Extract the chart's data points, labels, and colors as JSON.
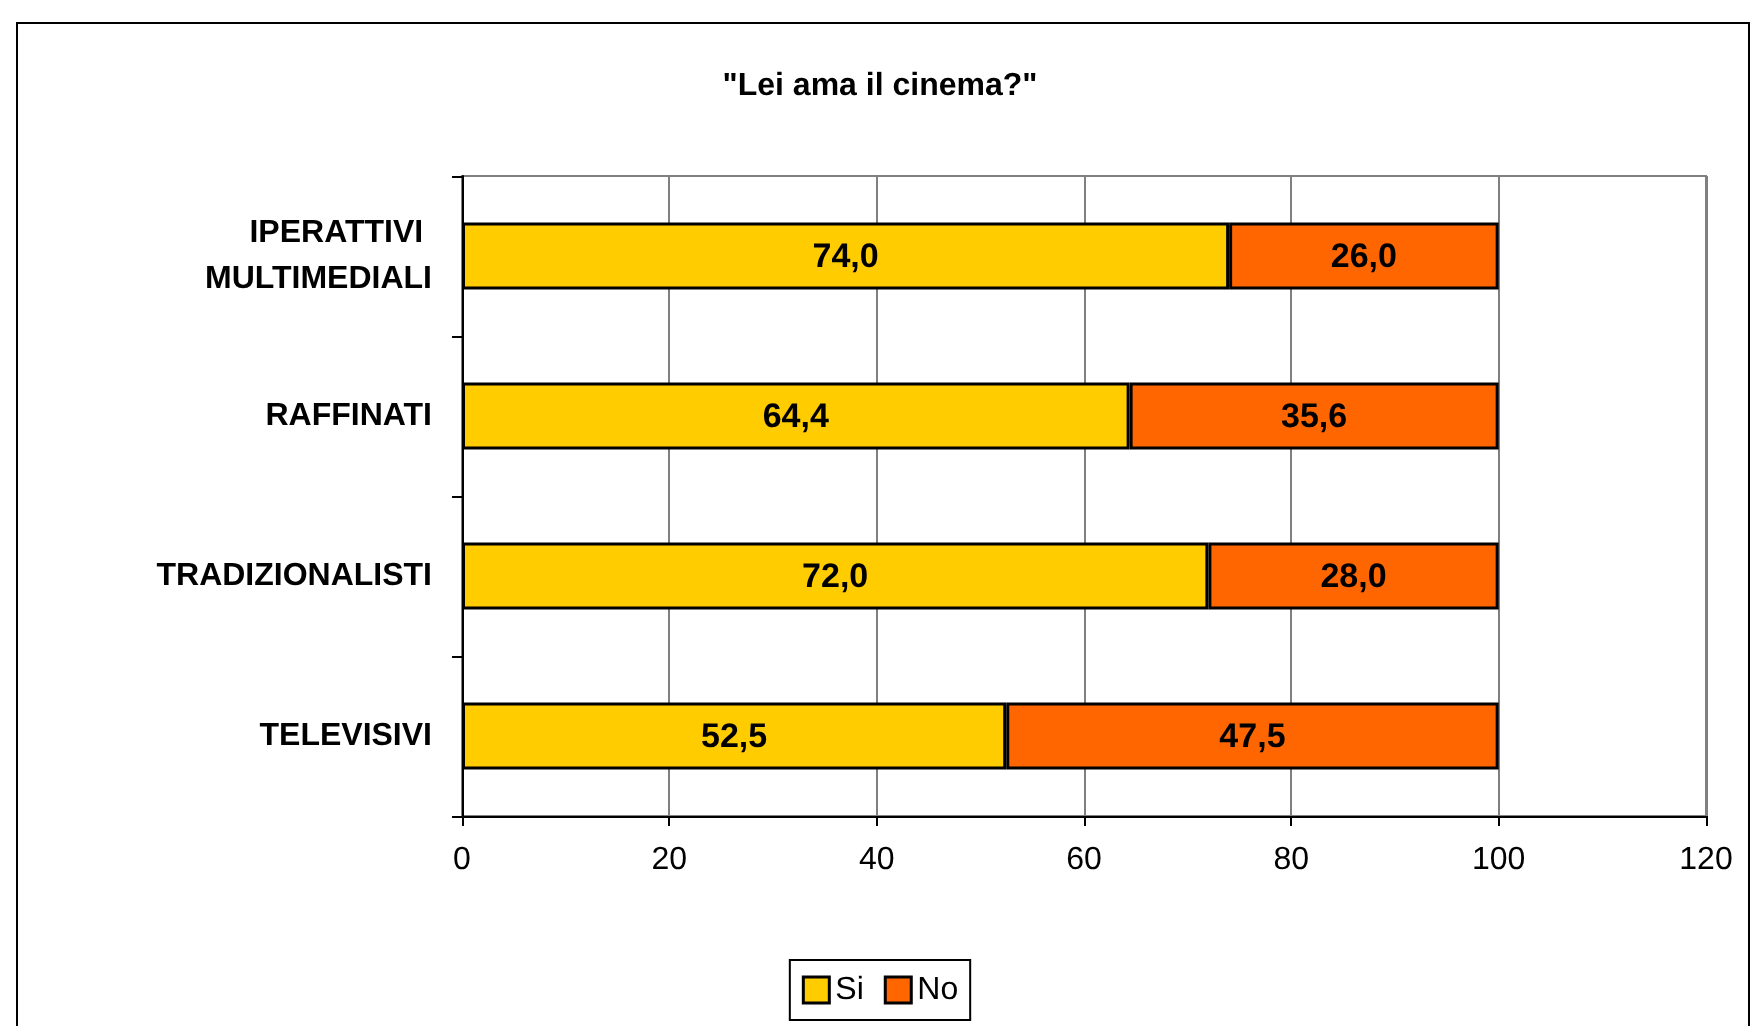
{
  "chart_data": {
    "type": "bar",
    "title": "\"Lei ama il cinema?\"",
    "orientation": "horizontal",
    "stacked": true,
    "categories": [
      "IPERATTIVI MULTIMEDIALI",
      "RAFFINATI",
      "TRADIZIONALISTI",
      "TELEVISIVI"
    ],
    "series": [
      {
        "name": "Si",
        "color": "#ffcc00",
        "values": [
          74.0,
          64.4,
          72.0,
          52.5
        ],
        "value_labels": [
          "74,0",
          "64,4",
          "72,0",
          "52,5"
        ]
      },
      {
        "name": "No",
        "color": "#ff6600",
        "values": [
          26.0,
          35.6,
          28.0,
          47.5
        ],
        "value_labels": [
          "26,0",
          "35,6",
          "28,0",
          "47,5"
        ]
      }
    ],
    "xlim": [
      0,
      120
    ],
    "xticks": [
      0,
      20,
      40,
      60,
      80,
      100,
      120
    ],
    "grid": "x",
    "legend": "bottom"
  }
}
